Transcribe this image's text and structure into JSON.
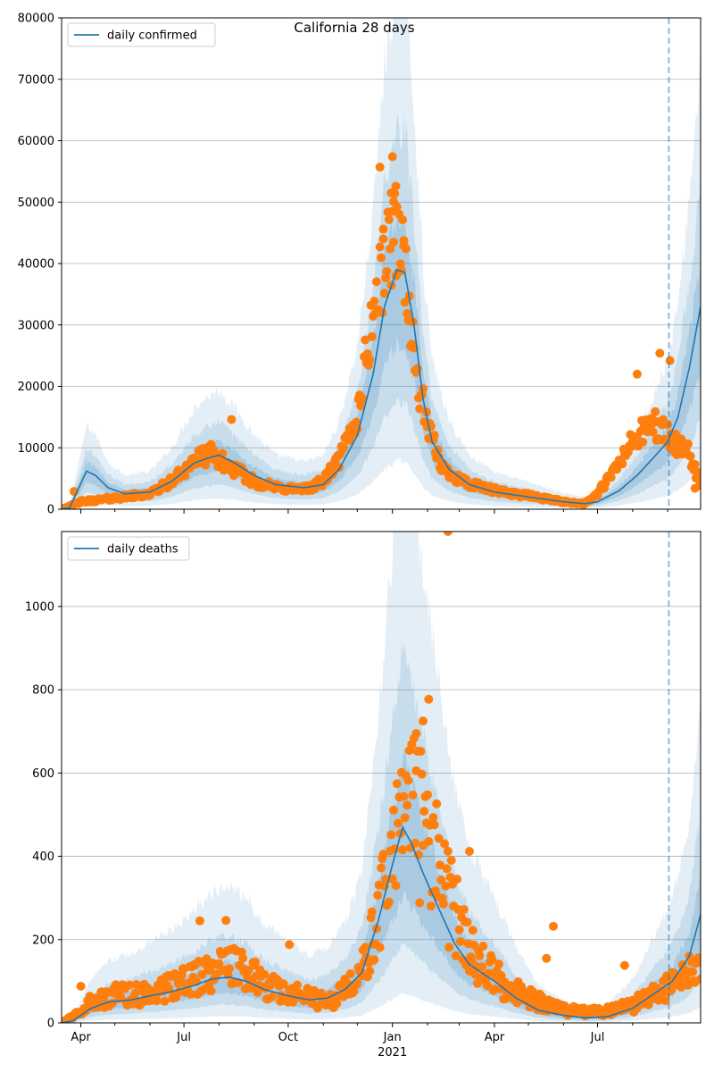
{
  "figure": {
    "title": "California 28 days"
  },
  "colors": {
    "line": "#1f77b4",
    "points": "#ff7f0e",
    "band": "#1f77b4",
    "vline": "#1f77b4",
    "grid": "#b0b0b0"
  },
  "chart_data": [
    {
      "type": "line",
      "legend": "daily confirmed",
      "legend_loc": "upper-left",
      "grid": "y",
      "x_range": [
        "2020-03-15",
        "2021-09-30"
      ],
      "ylim": [
        0,
        80000
      ],
      "yticks": [
        0,
        10000,
        20000,
        30000,
        40000,
        50000,
        60000,
        70000,
        80000
      ],
      "forecast_date": "2021-09-02",
      "series_keypoints": [
        {
          "date": "2020-03-15",
          "value": 0
        },
        {
          "date": "2020-03-22",
          "value": 200
        },
        {
          "date": "2020-03-29",
          "value": 3000
        },
        {
          "date": "2020-04-06",
          "value": 6200
        },
        {
          "date": "2020-04-14",
          "value": 5500
        },
        {
          "date": "2020-04-25",
          "value": 3500
        },
        {
          "date": "2020-05-10",
          "value": 2500
        },
        {
          "date": "2020-06-01",
          "value": 2800
        },
        {
          "date": "2020-06-20",
          "value": 4500
        },
        {
          "date": "2020-07-10",
          "value": 7500
        },
        {
          "date": "2020-07-20",
          "value": 8200
        },
        {
          "date": "2020-08-01",
          "value": 8800
        },
        {
          "date": "2020-08-15",
          "value": 7500
        },
        {
          "date": "2020-09-01",
          "value": 5500
        },
        {
          "date": "2020-09-20",
          "value": 4000
        },
        {
          "date": "2020-10-15",
          "value": 3500
        },
        {
          "date": "2020-11-01",
          "value": 4000
        },
        {
          "date": "2020-11-15",
          "value": 6500
        },
        {
          "date": "2020-12-01",
          "value": 12000
        },
        {
          "date": "2020-12-15",
          "value": 22000
        },
        {
          "date": "2020-12-25",
          "value": 33000
        },
        {
          "date": "2021-01-05",
          "value": 39000
        },
        {
          "date": "2021-01-12",
          "value": 38500
        },
        {
          "date": "2021-01-20",
          "value": 30000
        },
        {
          "date": "2021-01-28",
          "value": 18000
        },
        {
          "date": "2021-02-05",
          "value": 11000
        },
        {
          "date": "2021-02-20",
          "value": 6500
        },
        {
          "date": "2021-03-10",
          "value": 4000
        },
        {
          "date": "2021-04-01",
          "value": 2800
        },
        {
          "date": "2021-05-01",
          "value": 2000
        },
        {
          "date": "2021-06-01",
          "value": 1200
        },
        {
          "date": "2021-06-20",
          "value": 900
        },
        {
          "date": "2021-07-01",
          "value": 1200
        },
        {
          "date": "2021-07-20",
          "value": 3000
        },
        {
          "date": "2021-08-05",
          "value": 5500
        },
        {
          "date": "2021-08-20",
          "value": 8500
        },
        {
          "date": "2021-09-01",
          "value": 11000
        },
        {
          "date": "2021-09-10",
          "value": 15000
        },
        {
          "date": "2021-09-20",
          "value": 23000
        },
        {
          "date": "2021-09-30",
          "value": 33000
        }
      ],
      "observed_keypoints": [
        {
          "date": "2020-03-15",
          "value": 0
        },
        {
          "date": "2020-04-01",
          "value": 1200
        },
        {
          "date": "2020-05-01",
          "value": 1800
        },
        {
          "date": "2020-06-01",
          "value": 2500
        },
        {
          "date": "2020-06-20",
          "value": 4500
        },
        {
          "date": "2020-07-10",
          "value": 8000
        },
        {
          "date": "2020-07-25",
          "value": 9000
        },
        {
          "date": "2020-08-10",
          "value": 7000
        },
        {
          "date": "2020-09-01",
          "value": 4500
        },
        {
          "date": "2020-09-20",
          "value": 3500
        },
        {
          "date": "2020-10-15",
          "value": 3200
        },
        {
          "date": "2020-11-01",
          "value": 4500
        },
        {
          "date": "2020-11-15",
          "value": 8000
        },
        {
          "date": "2020-12-01",
          "value": 15000
        },
        {
          "date": "2020-12-15",
          "value": 32000
        },
        {
          "date": "2020-12-28",
          "value": 42000
        },
        {
          "date": "2021-01-05",
          "value": 46000
        },
        {
          "date": "2021-01-12",
          "value": 40000
        },
        {
          "date": "2021-01-20",
          "value": 24000
        },
        {
          "date": "2021-02-01",
          "value": 13000
        },
        {
          "date": "2021-02-15",
          "value": 6500
        },
        {
          "date": "2021-03-10",
          "value": 4000
        },
        {
          "date": "2021-04-01",
          "value": 3000
        },
        {
          "date": "2021-05-01",
          "value": 2200
        },
        {
          "date": "2021-06-01",
          "value": 1200
        },
        {
          "date": "2021-06-20",
          "value": 900
        },
        {
          "date": "2021-07-01",
          "value": 2500
        },
        {
          "date": "2021-07-15",
          "value": 6000
        },
        {
          "date": "2021-08-01",
          "value": 11000
        },
        {
          "date": "2021-08-20",
          "value": 14000
        },
        {
          "date": "2021-09-01",
          "value": 12000
        },
        {
          "date": "2021-09-10",
          "value": 10000
        },
        {
          "date": "2021-09-20",
          "value": 9000
        },
        {
          "date": "2021-09-30",
          "value": 4000
        }
      ],
      "noise_fraction": 0.18,
      "outliers": [
        {
          "date": "2020-12-21",
          "value": 55700
        },
        {
          "date": "2021-01-01",
          "value": 57400
        },
        {
          "date": "2020-12-31",
          "value": 51500
        },
        {
          "date": "2021-01-04",
          "value": 52600
        },
        {
          "date": "2020-12-24",
          "value": 45600
        },
        {
          "date": "2021-01-02",
          "value": 50100
        },
        {
          "date": "2021-01-11",
          "value": 42900
        },
        {
          "date": "2021-08-25",
          "value": 25400
        },
        {
          "date": "2021-09-03",
          "value": 24200
        },
        {
          "date": "2021-08-05",
          "value": 22000
        },
        {
          "date": "2020-08-12",
          "value": 14600
        },
        {
          "date": "2021-09-25",
          "value": 3400
        },
        {
          "date": "2020-03-26",
          "value": 2900
        }
      ],
      "band_scales": [
        [
          0.2,
          2.2
        ],
        [
          0.45,
          1.6
        ],
        [
          0.7,
          1.25
        ]
      ],
      "band_opacity": [
        0.12,
        0.14,
        0.18
      ]
    },
    {
      "type": "line",
      "legend": "daily deaths",
      "legend_loc": "upper-left",
      "grid": "y",
      "x_range": [
        "2020-03-15",
        "2021-09-30"
      ],
      "ylim": [
        0,
        1180
      ],
      "yticks": [
        0,
        200,
        400,
        600,
        800,
        1000
      ],
      "forecast_date": "2021-09-02",
      "series_keypoints": [
        {
          "date": "2020-03-15",
          "value": 0
        },
        {
          "date": "2020-03-25",
          "value": 5
        },
        {
          "date": "2020-04-10",
          "value": 35
        },
        {
          "date": "2020-04-25",
          "value": 50
        },
        {
          "date": "2020-05-15",
          "value": 55
        },
        {
          "date": "2020-06-01",
          "value": 65
        },
        {
          "date": "2020-06-20",
          "value": 75
        },
        {
          "date": "2020-07-10",
          "value": 90
        },
        {
          "date": "2020-07-25",
          "value": 105
        },
        {
          "date": "2020-08-10",
          "value": 110
        },
        {
          "date": "2020-08-25",
          "value": 100
        },
        {
          "date": "2020-09-10",
          "value": 80
        },
        {
          "date": "2020-10-01",
          "value": 65
        },
        {
          "date": "2020-10-20",
          "value": 55
        },
        {
          "date": "2020-11-05",
          "value": 60
        },
        {
          "date": "2020-11-20",
          "value": 80
        },
        {
          "date": "2020-12-05",
          "value": 120
        },
        {
          "date": "2020-12-20",
          "value": 250
        },
        {
          "date": "2021-01-01",
          "value": 380
        },
        {
          "date": "2021-01-10",
          "value": 470
        },
        {
          "date": "2021-01-18",
          "value": 430
        },
        {
          "date": "2021-01-28",
          "value": 360
        },
        {
          "date": "2021-02-10",
          "value": 280
        },
        {
          "date": "2021-02-25",
          "value": 190
        },
        {
          "date": "2021-03-10",
          "value": 140
        },
        {
          "date": "2021-04-01",
          "value": 100
        },
        {
          "date": "2021-04-20",
          "value": 60
        },
        {
          "date": "2021-05-10",
          "value": 30
        },
        {
          "date": "2021-06-01",
          "value": 18
        },
        {
          "date": "2021-06-20",
          "value": 12
        },
        {
          "date": "2021-07-10",
          "value": 15
        },
        {
          "date": "2021-08-01",
          "value": 35
        },
        {
          "date": "2021-08-20",
          "value": 70
        },
        {
          "date": "2021-09-05",
          "value": 100
        },
        {
          "date": "2021-09-20",
          "value": 160
        },
        {
          "date": "2021-09-30",
          "value": 260
        }
      ],
      "observed_keypoints": [
        {
          "date": "2020-03-15",
          "value": 0
        },
        {
          "date": "2020-04-10",
          "value": 50
        },
        {
          "date": "2020-05-01",
          "value": 70
        },
        {
          "date": "2020-06-01",
          "value": 70
        },
        {
          "date": "2020-07-01",
          "value": 95
        },
        {
          "date": "2020-07-25",
          "value": 120
        },
        {
          "date": "2020-08-10",
          "value": 135
        },
        {
          "date": "2020-08-25",
          "value": 120
        },
        {
          "date": "2020-09-15",
          "value": 90
        },
        {
          "date": "2020-10-15",
          "value": 60
        },
        {
          "date": "2020-11-10",
          "value": 55
        },
        {
          "date": "2020-12-01",
          "value": 100
        },
        {
          "date": "2020-12-20",
          "value": 250
        },
        {
          "date": "2021-01-05",
          "value": 430
        },
        {
          "date": "2021-01-15",
          "value": 520
        },
        {
          "date": "2021-01-25",
          "value": 480
        },
        {
          "date": "2021-02-10",
          "value": 380
        },
        {
          "date": "2021-02-25",
          "value": 260
        },
        {
          "date": "2021-03-15",
          "value": 150
        },
        {
          "date": "2021-04-10",
          "value": 90
        },
        {
          "date": "2021-05-01",
          "value": 60
        },
        {
          "date": "2021-06-01",
          "value": 30
        },
        {
          "date": "2021-07-01",
          "value": 25
        },
        {
          "date": "2021-08-01",
          "value": 40
        },
        {
          "date": "2021-08-25",
          "value": 80
        },
        {
          "date": "2021-09-15",
          "value": 110
        },
        {
          "date": "2021-09-30",
          "value": 130
        }
      ],
      "noise_fraction": 0.4,
      "outliers": [
        {
          "date": "2021-02-19",
          "value": 1180
        },
        {
          "date": "2021-02-02",
          "value": 777
        },
        {
          "date": "2021-01-28",
          "value": 725
        },
        {
          "date": "2021-01-22",
          "value": 695
        },
        {
          "date": "2021-03-10",
          "value": 412
        },
        {
          "date": "2021-05-23",
          "value": 232
        },
        {
          "date": "2021-07-25",
          "value": 138
        },
        {
          "date": "2021-05-17",
          "value": 155
        },
        {
          "date": "2020-04-01",
          "value": 88
        },
        {
          "date": "2020-08-07",
          "value": 246
        },
        {
          "date": "2020-07-15",
          "value": 245
        },
        {
          "date": "2020-10-02",
          "value": 188
        }
      ],
      "band_scales": [
        [
          0.15,
          3.0
        ],
        [
          0.4,
          1.9
        ],
        [
          0.65,
          1.35
        ]
      ],
      "band_opacity": [
        0.12,
        0.14,
        0.18
      ]
    }
  ],
  "xaxis": {
    "major_ticks": [
      {
        "date": "2020-04-01",
        "label": "Apr"
      },
      {
        "date": "2020-07-01",
        "label": "Jul"
      },
      {
        "date": "2020-10-01",
        "label": "Oct"
      },
      {
        "date": "2021-01-01",
        "label": "Jan"
      },
      {
        "date": "2021-04-01",
        "label": "Apr"
      },
      {
        "date": "2021-07-01",
        "label": "Jul"
      }
    ],
    "year_label": {
      "date": "2021-01-01",
      "label": "2021"
    }
  }
}
